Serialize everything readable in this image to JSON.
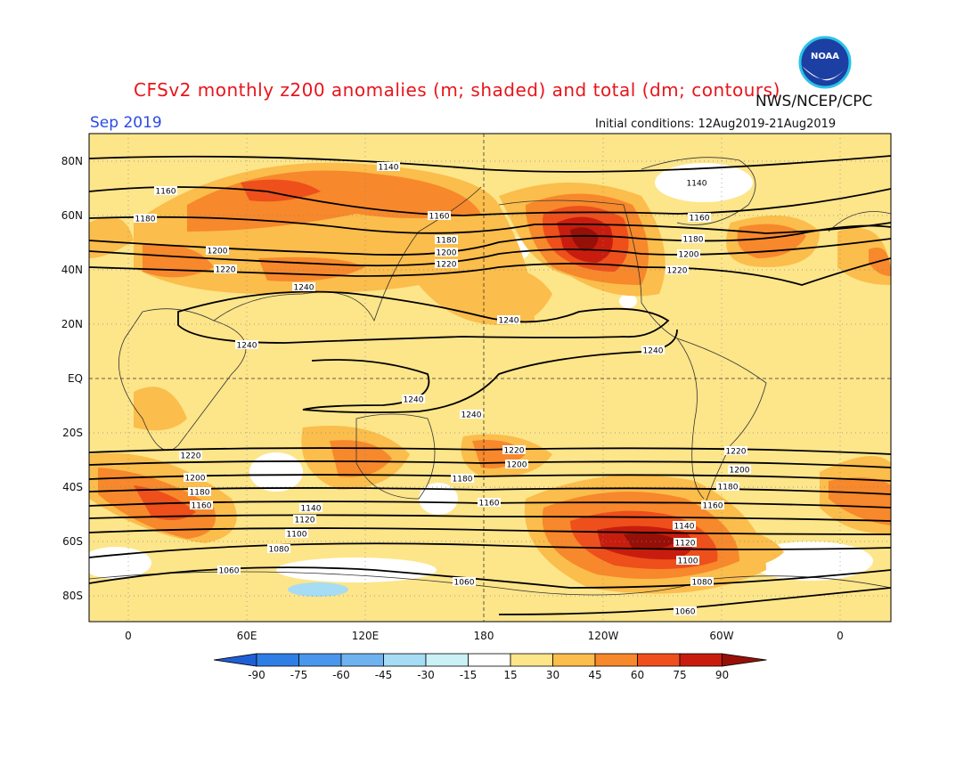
{
  "title": "CFSv2 monthly z200 anomalies (m; shaded) and total (dm; contours)",
  "agency": "NWS/NCEP/CPC",
  "month": "Sep 2019",
  "initial_conditions": "Initial conditions: 12Aug2019-21Aug2019",
  "logo_text": "NOAA",
  "lat_labels": [
    "80N",
    "60N",
    "40N",
    "20N",
    "EQ",
    "20S",
    "40S",
    "60S",
    "80S"
  ],
  "lon_labels": [
    "0",
    "60E",
    "120E",
    "180",
    "120W",
    "60W",
    "0"
  ],
  "colorbar": {
    "labels": [
      "-90",
      "-75",
      "-60",
      "-45",
      "-30",
      "-15",
      "15",
      "30",
      "45",
      "60",
      "75",
      "90"
    ],
    "colors": [
      "#1f5fd6",
      "#2f7ee6",
      "#4a96ec",
      "#6fb2f0",
      "#a6dcf4",
      "#c9f1f6",
      "#ffffff",
      "#fde58a",
      "#fbbd4b",
      "#f7882b",
      "#ee4f1b",
      "#c81d0e",
      "#961008"
    ]
  },
  "contour_labels": [
    {
      "text": "1140"
    },
    {
      "text": "1160"
    },
    {
      "text": "1180"
    },
    {
      "text": "1200"
    },
    {
      "text": "1220"
    },
    {
      "text": "1240"
    },
    {
      "text": "1160"
    },
    {
      "text": "1180"
    },
    {
      "text": "1200"
    },
    {
      "text": "1220"
    },
    {
      "text": "1240"
    },
    {
      "text": "1240"
    },
    {
      "text": "1140"
    },
    {
      "text": "1160"
    },
    {
      "text": "1180"
    },
    {
      "text": "1200"
    },
    {
      "text": "1220"
    },
    {
      "text": "1240"
    },
    {
      "text": "1240"
    },
    {
      "text": "1240"
    },
    {
      "text": "1220"
    },
    {
      "text": "1200"
    },
    {
      "text": "1180"
    },
    {
      "text": "1160"
    },
    {
      "text": "1220"
    },
    {
      "text": "1200"
    },
    {
      "text": "1180"
    },
    {
      "text": "1160"
    },
    {
      "text": "1140"
    },
    {
      "text": "1120"
    },
    {
      "text": "1100"
    },
    {
      "text": "1080"
    },
    {
      "text": "1060"
    },
    {
      "text": "1060"
    },
    {
      "text": "1220"
    },
    {
      "text": "1200"
    },
    {
      "text": "1180"
    },
    {
      "text": "1160"
    },
    {
      "text": "1140"
    },
    {
      "text": "1120"
    },
    {
      "text": "1100"
    },
    {
      "text": "1080"
    },
    {
      "text": "1060"
    }
  ]
}
